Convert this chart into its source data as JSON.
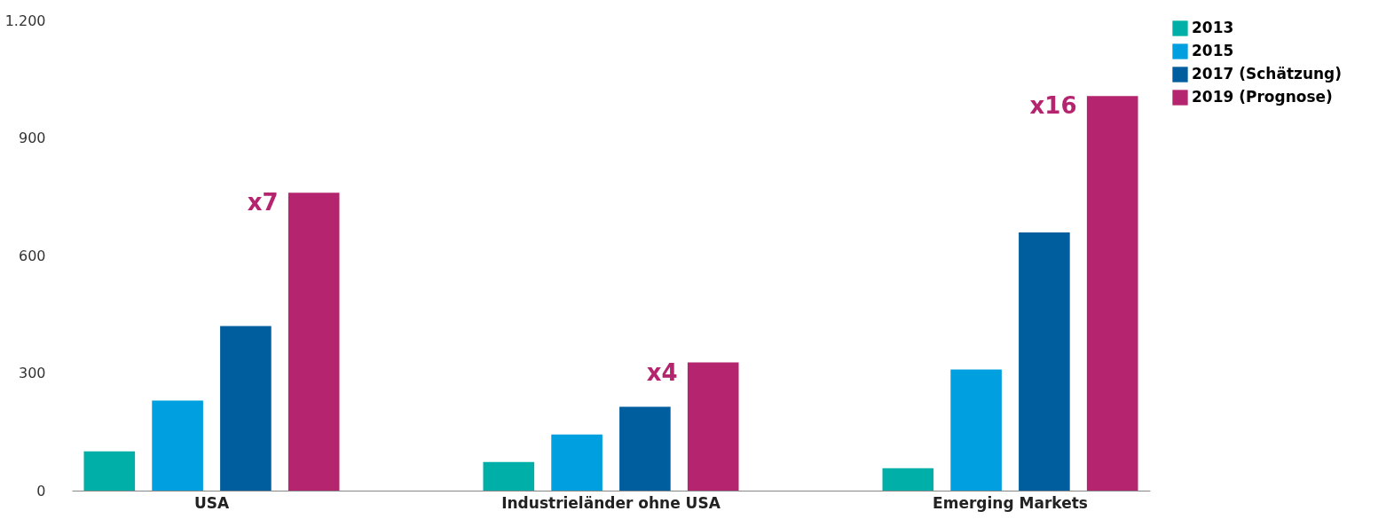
{
  "chart_data": {
    "type": "bar",
    "categories": [
      "USA",
      "Industrieländer ohne USA",
      "Emerging Markets"
    ],
    "series": [
      {
        "name": "2013",
        "color": "#00b0a8",
        "values": [
          100,
          73,
          57
        ]
      },
      {
        "name": "2015",
        "color": "#009fdf",
        "values": [
          230,
          143,
          309
        ]
      },
      {
        "name": "2017 (Schätzung)",
        "color": "#005e9e",
        "values": [
          420,
          214,
          659
        ]
      },
      {
        "name": "2019 (Prognose)",
        "color": "#b5256f",
        "values": [
          760,
          327,
          1007
        ]
      }
    ],
    "ylim": [
      0,
      1200
    ],
    "yticks": [
      0,
      300,
      600,
      900,
      {
        "value": 1200,
        "label": "1.200"
      }
    ],
    "annotations": [
      "x7",
      "x4",
      "x16"
    ],
    "grid": false,
    "legend": "top right"
  }
}
